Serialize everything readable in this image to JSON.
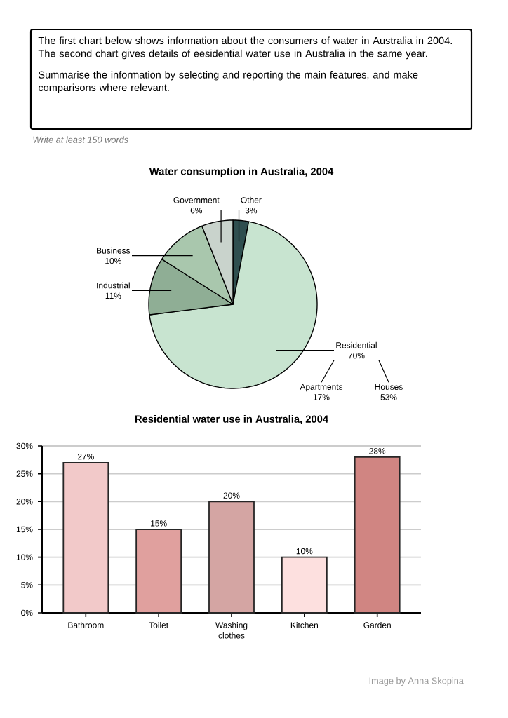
{
  "chart_data": [
    {
      "type": "other",
      "annotations": [
        "The first chart below shows information about the consumers of water in Australia in 2004. The second chart gives details of eesidential water use in Australia in the same year.",
        "Summarise the information by selecting and reporting the main features, and make comparisons where relevant.",
        "Write at least 150 words"
      ]
    },
    {
      "type": "pie",
      "title": "Water consumption in Australia, 2004",
      "categories": [
        "Other",
        "Residential",
        "Industrial",
        "Business",
        "Government"
      ],
      "values": [
        3,
        70,
        11,
        10,
        6
      ],
      "colors": [
        "#2f4f4f",
        "#c8e4d0",
        "#8fae95",
        "#a9c7ad",
        "#c9d3cc"
      ],
      "value_labels": [
        "3%",
        "70%",
        "11%",
        "10%",
        "6%"
      ],
      "annotations": [
        "Apartments 17%",
        "Houses 53%"
      ]
    },
    {
      "type": "bar",
      "title": "Residential water use in Australia, 2004",
      "categories": [
        "Bathroom",
        "Toilet",
        "Washing clothes",
        "Kitchen",
        "Garden"
      ],
      "values": [
        27,
        15,
        20,
        10,
        28
      ],
      "colors": [
        "#f2c9c9",
        "#e0a09e",
        "#d4a5a3",
        "#fde0df",
        "#d08582"
      ],
      "value_labels": [
        "27%",
        "15%",
        "20%",
        "10%",
        "28%"
      ],
      "ylim": [
        0,
        30
      ],
      "yticks": [
        {
          "value": 0,
          "label": "0%"
        },
        {
          "value": 5,
          "label": "5%"
        },
        {
          "value": 10,
          "label": "10%"
        },
        {
          "value": 15,
          "label": "15%"
        },
        {
          "value": 20,
          "label": "20%"
        },
        {
          "value": 25,
          "label": "25%"
        },
        {
          "value": 30,
          "label": "30%"
        }
      ],
      "grid": "y",
      "annotations": [
        "Image by Anna Skopina"
      ]
    }
  ]
}
